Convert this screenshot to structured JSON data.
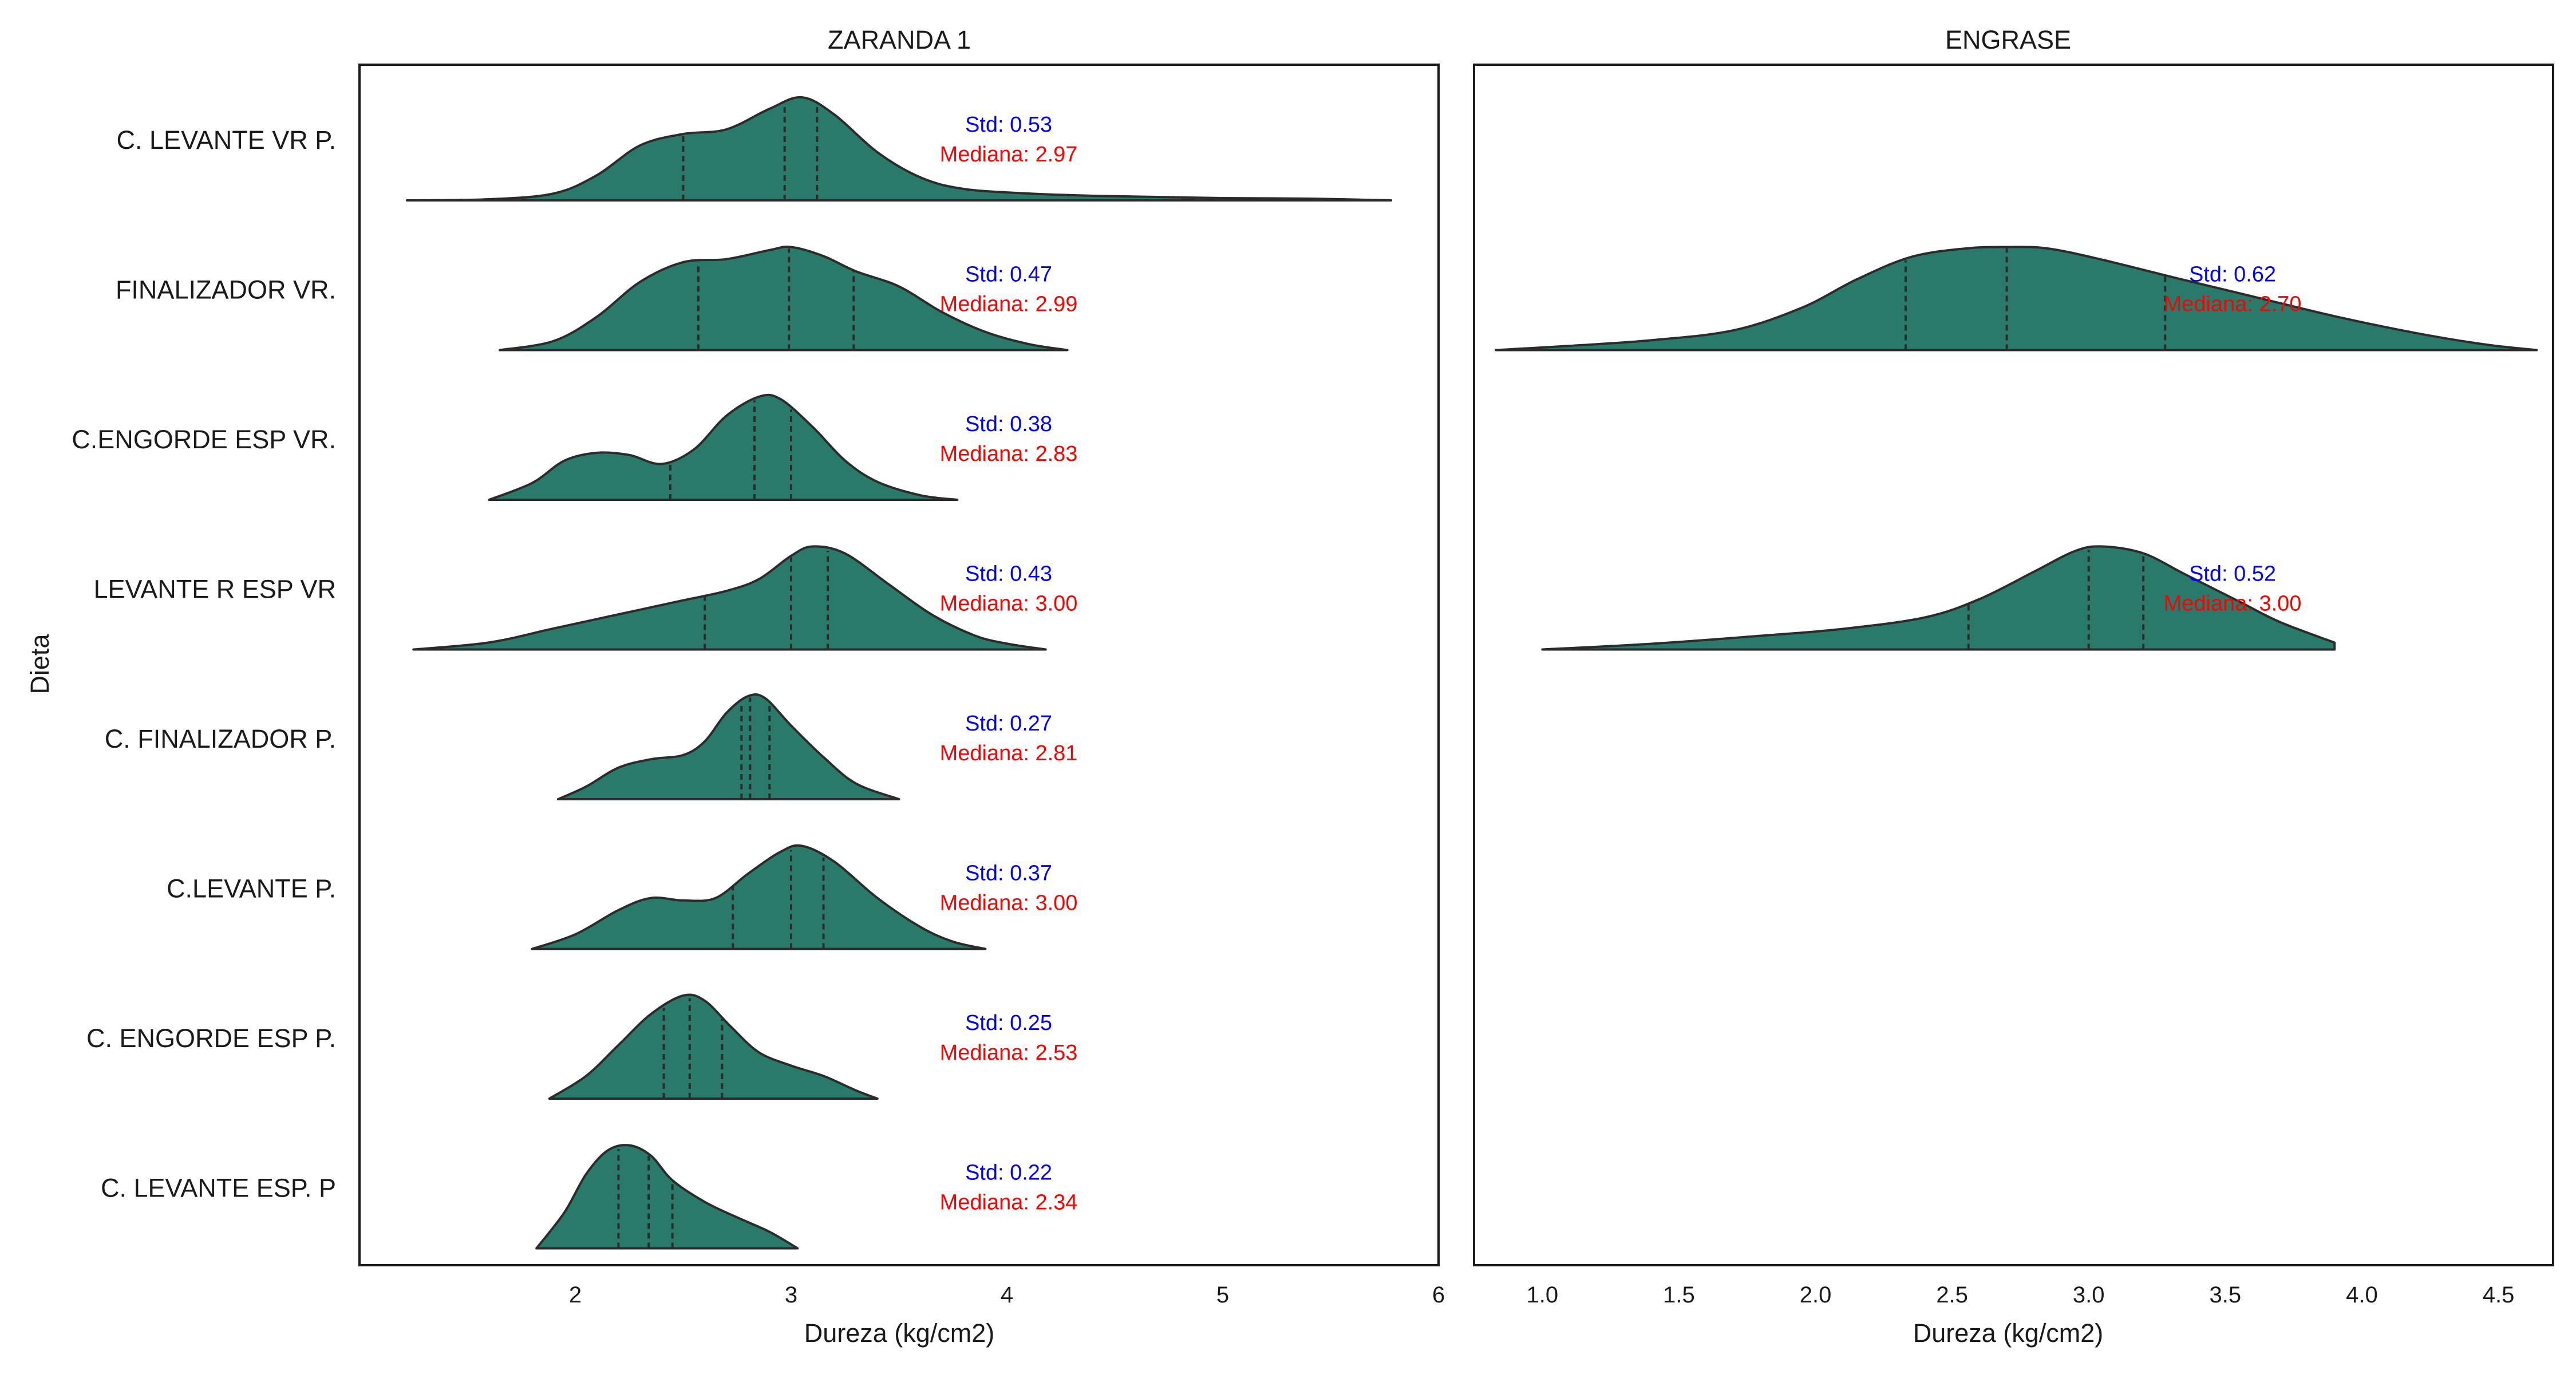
{
  "y_axis_label": "Dieta",
  "colors": {
    "violin_fill": "#2a7a6c",
    "violin_edge": "#2b2b2b",
    "std_text": "#0000ff",
    "median_text": "#ff0000",
    "axes": "#1a1a1a"
  },
  "chart_data": [
    {
      "type": "violin",
      "orientation": "horizontal",
      "split": "half-violin",
      "title": "ZARANDA 1",
      "xlabel": "Dureza (kg/cm2)",
      "ylabel": "Dieta",
      "xlim": [
        1.0,
        6.0
      ],
      "x_ticks": [
        2,
        3,
        4,
        5,
        6
      ],
      "x_tick_labels": [
        "2",
        "3",
        "4",
        "5",
        "6"
      ],
      "grid": false,
      "categories": [
        "C. LEVANTE VR P.",
        "FINALIZADOR VR.",
        "C.ENGORDE ESP VR.",
        "LEVANTE R ESP VR",
        "C. FINALIZADOR P.",
        "C.LEVANTE P.",
        "C. ENGORDE ESP P.",
        "C. LEVANTE ESP. P"
      ],
      "series": [
        {
          "category": "C. LEVANTE VR P.",
          "std": 0.53,
          "median": 2.97,
          "std_label": "Std: 0.53",
          "median_label": "Mediana: 2.97",
          "min": 1.22,
          "max": 5.78,
          "quartiles": [
            2.5,
            2.97,
            3.12
          ],
          "density": [
            [
              1.22,
              0
            ],
            [
              1.6,
              0.01
            ],
            [
              1.9,
              0.06
            ],
            [
              2.1,
              0.22
            ],
            [
              2.3,
              0.48
            ],
            [
              2.5,
              0.58
            ],
            [
              2.7,
              0.62
            ],
            [
              2.9,
              0.8
            ],
            [
              3.05,
              0.9
            ],
            [
              3.2,
              0.75
            ],
            [
              3.4,
              0.42
            ],
            [
              3.6,
              0.2
            ],
            [
              3.8,
              0.1
            ],
            [
              4.1,
              0.06
            ],
            [
              4.4,
              0.04
            ],
            [
              4.7,
              0.03
            ],
            [
              5.0,
              0.02
            ],
            [
              5.4,
              0.015
            ],
            [
              5.78,
              0
            ]
          ]
        },
        {
          "category": "FINALIZADOR VR.",
          "std": 0.47,
          "median": 2.99,
          "std_label": "Std: 0.47",
          "median_label": "Mediana: 2.99",
          "min": 1.65,
          "max": 4.28,
          "quartiles": [
            2.57,
            2.99,
            3.29
          ],
          "density": [
            [
              1.65,
              0
            ],
            [
              1.9,
              0.06
            ],
            [
              2.1,
              0.22
            ],
            [
              2.3,
              0.45
            ],
            [
              2.5,
              0.58
            ],
            [
              2.7,
              0.6
            ],
            [
              2.9,
              0.66
            ],
            [
              3.0,
              0.68
            ],
            [
              3.15,
              0.62
            ],
            [
              3.3,
              0.52
            ],
            [
              3.5,
              0.42
            ],
            [
              3.7,
              0.25
            ],
            [
              3.9,
              0.12
            ],
            [
              4.1,
              0.04
            ],
            [
              4.28,
              0
            ]
          ]
        },
        {
          "category": "C.ENGORDE ESP VR.",
          "std": 0.38,
          "median": 2.83,
          "std_label": "Std: 0.38",
          "median_label": "Mediana: 2.83",
          "min": 1.6,
          "max": 3.77,
          "quartiles": [
            2.44,
            2.83,
            3.0
          ],
          "density": [
            [
              1.6,
              0
            ],
            [
              1.8,
              0.15
            ],
            [
              1.95,
              0.35
            ],
            [
              2.1,
              0.42
            ],
            [
              2.25,
              0.4
            ],
            [
              2.4,
              0.32
            ],
            [
              2.55,
              0.45
            ],
            [
              2.7,
              0.75
            ],
            [
              2.85,
              0.92
            ],
            [
              2.95,
              0.9
            ],
            [
              3.1,
              0.65
            ],
            [
              3.25,
              0.35
            ],
            [
              3.4,
              0.16
            ],
            [
              3.6,
              0.04
            ],
            [
              3.77,
              0
            ]
          ]
        },
        {
          "category": "LEVANTE R ESP VR",
          "std": 0.43,
          "median": 3.0,
          "std_label": "Std: 0.43",
          "median_label": "Mediana: 3.00",
          "min": 1.25,
          "max": 4.18,
          "quartiles": [
            2.6,
            3.0,
            3.17
          ],
          "density": [
            [
              1.25,
              0
            ],
            [
              1.6,
              0.06
            ],
            [
              1.9,
              0.18
            ],
            [
              2.2,
              0.3
            ],
            [
              2.5,
              0.42
            ],
            [
              2.7,
              0.5
            ],
            [
              2.85,
              0.6
            ],
            [
              3.0,
              0.8
            ],
            [
              3.1,
              0.88
            ],
            [
              3.25,
              0.82
            ],
            [
              3.45,
              0.56
            ],
            [
              3.65,
              0.3
            ],
            [
              3.85,
              0.12
            ],
            [
              4.0,
              0.05
            ],
            [
              4.18,
              0
            ]
          ]
        },
        {
          "category": "C. FINALIZADOR P.",
          "std": 0.27,
          "median": 2.81,
          "std_label": "Std: 0.27",
          "median_label": "Mediana: 2.81",
          "min": 1.92,
          "max": 3.5,
          "quartiles": [
            2.77,
            2.81,
            2.9
          ],
          "density": [
            [
              1.92,
              0
            ],
            [
              2.05,
              0.12
            ],
            [
              2.2,
              0.3
            ],
            [
              2.35,
              0.38
            ],
            [
              2.5,
              0.42
            ],
            [
              2.6,
              0.55
            ],
            [
              2.7,
              0.82
            ],
            [
              2.8,
              0.98
            ],
            [
              2.88,
              0.96
            ],
            [
              3.0,
              0.7
            ],
            [
              3.15,
              0.4
            ],
            [
              3.3,
              0.15
            ],
            [
              3.5,
              0
            ]
          ]
        },
        {
          "category": "C.LEVANTE P.",
          "std": 0.37,
          "median": 3.0,
          "std_label": "Std: 0.37",
          "median_label": "Mediana: 3.00",
          "min": 1.8,
          "max": 3.9,
          "quartiles": [
            2.73,
            3.0,
            3.15
          ],
          "density": [
            [
              1.8,
              0
            ],
            [
              2.0,
              0.12
            ],
            [
              2.2,
              0.32
            ],
            [
              2.35,
              0.42
            ],
            [
              2.5,
              0.4
            ],
            [
              2.65,
              0.42
            ],
            [
              2.8,
              0.62
            ],
            [
              2.95,
              0.8
            ],
            [
              3.05,
              0.85
            ],
            [
              3.2,
              0.72
            ],
            [
              3.4,
              0.42
            ],
            [
              3.6,
              0.18
            ],
            [
              3.75,
              0.06
            ],
            [
              3.9,
              0
            ]
          ]
        },
        {
          "category": "C. ENGORDE ESP P.",
          "std": 0.25,
          "median": 2.53,
          "std_label": "Std: 0.25",
          "median_label": "Mediana: 2.53",
          "min": 1.88,
          "max": 3.4,
          "quartiles": [
            2.41,
            2.53,
            2.68
          ],
          "density": [
            [
              1.88,
              0
            ],
            [
              2.05,
              0.22
            ],
            [
              2.2,
              0.52
            ],
            [
              2.35,
              0.82
            ],
            [
              2.5,
              1.0
            ],
            [
              2.6,
              0.95
            ],
            [
              2.72,
              0.7
            ],
            [
              2.85,
              0.45
            ],
            [
              3.0,
              0.32
            ],
            [
              3.15,
              0.22
            ],
            [
              3.3,
              0.08
            ],
            [
              3.4,
              0
            ]
          ]
        },
        {
          "category": "C. LEVANTE ESP. P",
          "std": 0.22,
          "median": 2.34,
          "std_label": "Std: 0.22",
          "median_label": "Mediana: 2.34",
          "min": 1.82,
          "max": 3.03,
          "quartiles": [
            2.2,
            2.34,
            2.45
          ],
          "density": [
            [
              1.82,
              0
            ],
            [
              1.95,
              0.35
            ],
            [
              2.05,
              0.72
            ],
            [
              2.15,
              0.95
            ],
            [
              2.25,
              1.0
            ],
            [
              2.35,
              0.9
            ],
            [
              2.45,
              0.66
            ],
            [
              2.6,
              0.45
            ],
            [
              2.75,
              0.3
            ],
            [
              2.9,
              0.16
            ],
            [
              3.03,
              0
            ]
          ]
        }
      ]
    },
    {
      "type": "violin",
      "orientation": "horizontal",
      "split": "half-violin",
      "title": "ENGRASE",
      "xlabel": "Dureza (kg/cm2)",
      "xlim": [
        0.75,
        4.7
      ],
      "x_ticks": [
        1.0,
        1.5,
        2.0,
        2.5,
        3.0,
        3.5,
        4.0,
        4.5
      ],
      "x_tick_labels": [
        "1.0",
        "1.5",
        "2.0",
        "2.5",
        "3.0",
        "3.5",
        "4.0",
        "4.5"
      ],
      "grid": false,
      "categories": [
        "FINALIZADOR VR.",
        "LEVANTE R ESP VR"
      ],
      "series": [
        {
          "category": "FINALIZADOR VR.",
          "std": 0.62,
          "median": 2.7,
          "std_label": "Std: 0.62",
          "median_label": "Mediana: 2.70",
          "min": 0.83,
          "max": 4.64,
          "quartiles": [
            2.33,
            2.7,
            3.28
          ],
          "density": [
            [
              0.83,
              0
            ],
            [
              1.1,
              0.03
            ],
            [
              1.4,
              0.07
            ],
            [
              1.7,
              0.14
            ],
            [
              1.95,
              0.3
            ],
            [
              2.15,
              0.5
            ],
            [
              2.35,
              0.66
            ],
            [
              2.55,
              0.72
            ],
            [
              2.7,
              0.73
            ],
            [
              2.85,
              0.72
            ],
            [
              3.05,
              0.64
            ],
            [
              3.3,
              0.52
            ],
            [
              3.6,
              0.38
            ],
            [
              3.9,
              0.24
            ],
            [
              4.2,
              0.12
            ],
            [
              4.45,
              0.04
            ],
            [
              4.64,
              0
            ]
          ]
        },
        {
          "category": "LEVANTE R ESP VR",
          "std": 0.52,
          "median": 3.0,
          "std_label": "Std: 0.52",
          "median_label": "Mediana: 3.00",
          "min": 1.0,
          "max": 3.9,
          "quartiles": [
            2.56,
            3.0,
            3.2
          ],
          "density": [
            [
              1.0,
              0
            ],
            [
              1.4,
              0.05
            ],
            [
              1.8,
              0.12
            ],
            [
              2.1,
              0.18
            ],
            [
              2.4,
              0.28
            ],
            [
              2.6,
              0.44
            ],
            [
              2.8,
              0.68
            ],
            [
              2.95,
              0.86
            ],
            [
              3.05,
              0.9
            ],
            [
              3.2,
              0.84
            ],
            [
              3.35,
              0.66
            ],
            [
              3.55,
              0.42
            ],
            [
              3.7,
              0.24
            ],
            [
              3.9,
              0.06
            ]
          ]
        }
      ]
    }
  ]
}
